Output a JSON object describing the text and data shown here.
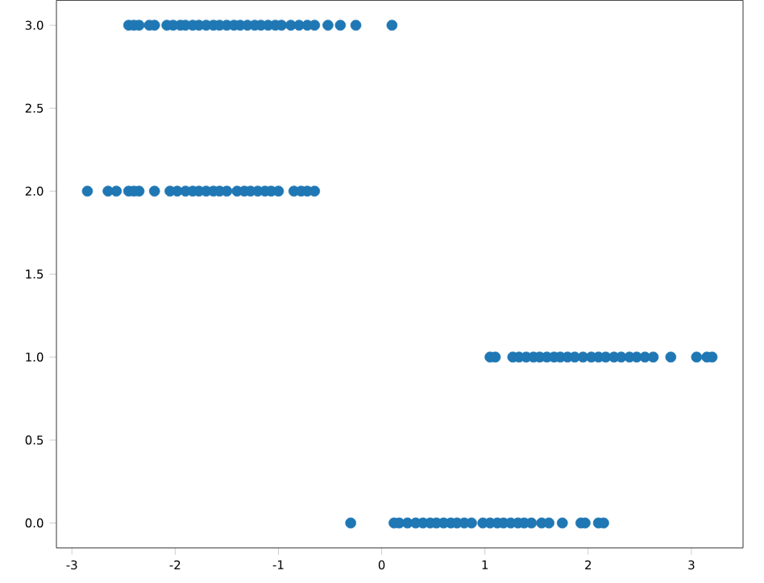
{
  "chart_data": {
    "type": "scatter",
    "marker": "circle",
    "grid": false,
    "xlim": [
      -3.15,
      3.5
    ],
    "ylim": [
      -0.15,
      3.15
    ],
    "xticks": [
      -3,
      -2,
      -1,
      0,
      1,
      2,
      3
    ],
    "yticks": [
      {
        "value": 0,
        "label": "0.0"
      },
      {
        "value": 0.5,
        "label": "0.5"
      },
      {
        "value": 1,
        "label": "1.0"
      },
      {
        "value": 1.5,
        "label": "1.5"
      },
      {
        "value": 2,
        "label": "2.0"
      },
      {
        "value": 2.5,
        "label": "2.5"
      },
      {
        "value": 3,
        "label": "3.0"
      }
    ],
    "series": [
      {
        "color": "#1f77b4",
        "x": [
          -2.45,
          -2.4,
          -2.35,
          -2.25,
          -2.2,
          -2.08,
          -2.02,
          -1.95,
          -1.9,
          -1.83,
          -1.77,
          -1.7,
          -1.63,
          -1.57,
          -1.5,
          -1.43,
          -1.37,
          -1.3,
          -1.23,
          -1.17,
          -1.1,
          -1.03,
          -0.97,
          -0.88,
          -0.8,
          -0.72,
          -0.65,
          -0.52,
          -0.4,
          -0.25,
          0.1,
          -2.85,
          -2.65,
          -2.57,
          -2.45,
          -2.4,
          -2.35,
          -2.2,
          -2.05,
          -1.98,
          -1.9,
          -1.83,
          -1.77,
          -1.7,
          -1.63,
          -1.57,
          -1.5,
          -1.4,
          -1.33,
          -1.27,
          -1.2,
          -1.13,
          -1.07,
          -1.0,
          -0.85,
          -0.78,
          -0.72,
          -0.65,
          1.05,
          1.1,
          1.27,
          1.33,
          1.4,
          1.47,
          1.53,
          1.6,
          1.67,
          1.73,
          1.8,
          1.87,
          1.95,
          2.03,
          2.1,
          2.17,
          2.25,
          2.32,
          2.4,
          2.47,
          2.55,
          2.63,
          2.8,
          3.05,
          3.15,
          3.2,
          -0.3,
          0.12,
          0.17,
          0.25,
          0.33,
          0.4,
          0.47,
          0.53,
          0.6,
          0.67,
          0.73,
          0.8,
          0.87,
          0.98,
          1.05,
          1.12,
          1.18,
          1.25,
          1.32,
          1.38,
          1.45,
          1.55,
          1.62,
          1.75,
          1.93,
          1.97,
          2.1,
          2.15
        ],
        "values": [
          3,
          3,
          3,
          3,
          3,
          3,
          3,
          3,
          3,
          3,
          3,
          3,
          3,
          3,
          3,
          3,
          3,
          3,
          3,
          3,
          3,
          3,
          3,
          3,
          3,
          3,
          3,
          3,
          3,
          3,
          3,
          2,
          2,
          2,
          2,
          2,
          2,
          2,
          2,
          2,
          2,
          2,
          2,
          2,
          2,
          2,
          2,
          2,
          2,
          2,
          2,
          2,
          2,
          2,
          2,
          2,
          2,
          2,
          1,
          1,
          1,
          1,
          1,
          1,
          1,
          1,
          1,
          1,
          1,
          1,
          1,
          1,
          1,
          1,
          1,
          1,
          1,
          1,
          1,
          1,
          1,
          1,
          1,
          1,
          0,
          0,
          0,
          0,
          0,
          0,
          0,
          0,
          0,
          0,
          0,
          0,
          0,
          0,
          0,
          0,
          0,
          0,
          0,
          0,
          0,
          0,
          0,
          0,
          0,
          0,
          0,
          0
        ]
      }
    ]
  }
}
